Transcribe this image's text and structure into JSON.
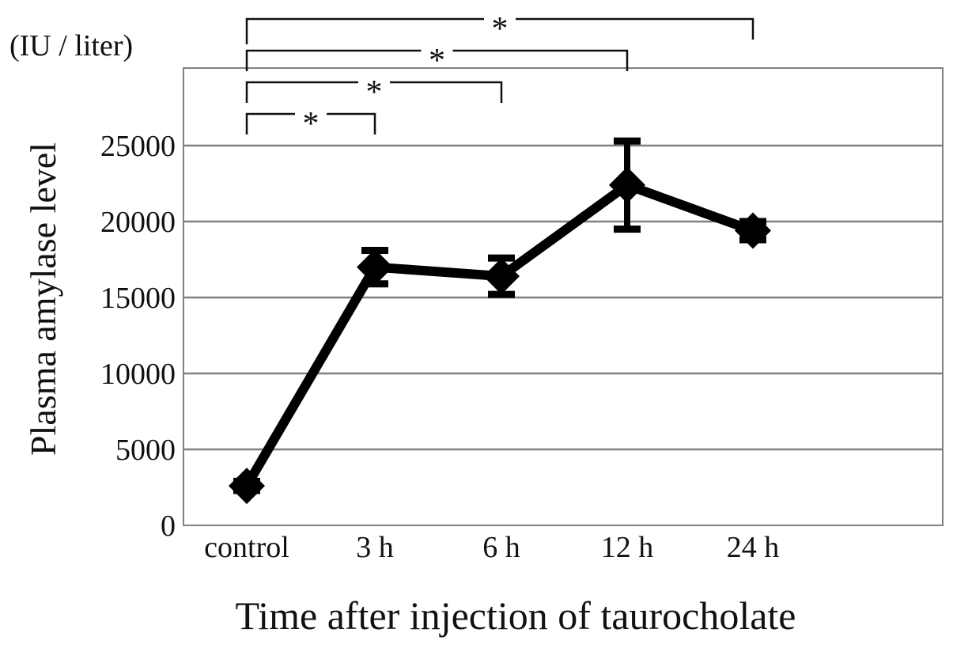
{
  "chart_data": {
    "type": "line",
    "categories": [
      "control",
      "3 h",
      "6 h",
      "12 h",
      "24 h"
    ],
    "series": [
      {
        "values": [
          2600,
          17000,
          16400,
          22400,
          19400
        ],
        "error": [
          300,
          1100,
          1200,
          2900,
          600
        ]
      }
    ],
    "ylim": [
      0,
      30000
    ],
    "yticks": [
      0,
      5000,
      10000,
      15000,
      20000,
      25000
    ],
    "ytick_labels": [
      "0",
      "5000",
      "10000",
      "15000",
      "20000",
      "25000"
    ],
    "unit_label": "(IU / liter)",
    "ylabel": "Plasma amylase level",
    "xlabel": "Time after injection of taurocholate",
    "grid": true,
    "significance": [
      {
        "from": "control",
        "to": "3 h",
        "label": "*"
      },
      {
        "from": "control",
        "to": "6 h",
        "label": "*"
      },
      {
        "from": "control",
        "to": "12 h",
        "label": "*"
      },
      {
        "from": "control",
        "to": "24 h",
        "label": "*"
      }
    ],
    "colors": {
      "line": "#000000",
      "grid": "#808080",
      "axis": "#808080"
    }
  }
}
